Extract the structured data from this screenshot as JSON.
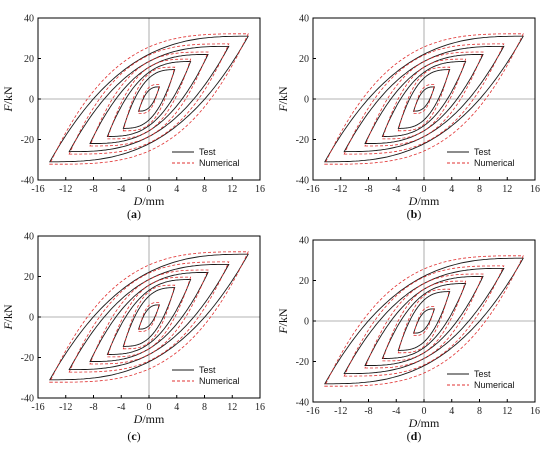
{
  "colors": {
    "test": "#1a1a1a",
    "numerical": "#e03030",
    "axis": "#000000",
    "zero_line": "#9a9a9a"
  },
  "chart_data": [
    {
      "type": "line",
      "panel_label": "(a)",
      "xlabel_parts": [
        "D",
        "/mm"
      ],
      "ylabel_parts": [
        "F",
        "/kN"
      ],
      "xlim": [
        -16,
        16
      ],
      "ylim": [
        -40,
        40
      ],
      "xticks": [
        -16,
        -12,
        -8,
        -4,
        0,
        4,
        8,
        12,
        16
      ],
      "yticks": [
        -40,
        -20,
        0,
        20,
        40
      ],
      "legend_position": "bottom-right",
      "legend": [
        "Test",
        "Numerical"
      ],
      "amplitudes_mm": [
        1.5,
        3.7,
        6,
        8.5,
        11.5,
        14.3
      ],
      "peak_forces_kN": [
        6,
        14.5,
        18.5,
        22,
        26,
        31
      ],
      "series": [
        {
          "name": "Test",
          "style": "solid",
          "color": "#1a1a1a"
        },
        {
          "name": "Numerical",
          "style": "dashed",
          "color": "#e03030"
        }
      ]
    },
    {
      "type": "line",
      "panel_label": "(b)",
      "xlabel_parts": [
        "D",
        "/mm"
      ],
      "ylabel_parts": [
        "F",
        "/kN"
      ],
      "xlim": [
        -16,
        16
      ],
      "ylim": [
        -40,
        40
      ],
      "xticks": [
        -16,
        -12,
        -8,
        -4,
        0,
        4,
        8,
        12,
        16
      ],
      "yticks": [
        -40,
        -20,
        0,
        20,
        40
      ],
      "legend_position": "bottom-right",
      "legend": [
        "Test",
        "Numerical"
      ],
      "amplitudes_mm": [
        1.5,
        3.7,
        6,
        8.5,
        11.5,
        14.3
      ],
      "peak_forces_kN": [
        6,
        14.5,
        18.5,
        22,
        26,
        31
      ],
      "series": [
        {
          "name": "Test",
          "style": "solid",
          "color": "#1a1a1a"
        },
        {
          "name": "Numerical",
          "style": "dashed",
          "color": "#e03030"
        }
      ]
    },
    {
      "type": "line",
      "panel_label": "(c)",
      "xlabel_parts": [
        "D",
        "/mm"
      ],
      "ylabel_parts": [
        "F",
        "/kN"
      ],
      "xlim": [
        -16,
        16
      ],
      "ylim": [
        -40,
        40
      ],
      "xticks": [
        -16,
        -12,
        -8,
        -4,
        0,
        4,
        8,
        12,
        16
      ],
      "yticks": [
        -40,
        -20,
        0,
        20,
        40
      ],
      "legend_position": "bottom-right",
      "legend": [
        "Test",
        "Numerical"
      ],
      "amplitudes_mm": [
        1.5,
        3.7,
        6,
        8.5,
        11.5,
        14.3
      ],
      "peak_forces_kN": [
        6,
        14.5,
        18.5,
        22,
        26,
        31
      ],
      "series": [
        {
          "name": "Test",
          "style": "solid",
          "color": "#1a1a1a"
        },
        {
          "name": "Numerical",
          "style": "dashed",
          "color": "#e03030"
        }
      ]
    },
    {
      "type": "line",
      "panel_label": "(d)",
      "xlabel_parts": [
        "D",
        "/mm"
      ],
      "ylabel_parts": [
        "F",
        "/kN"
      ],
      "xlim": [
        -16,
        16
      ],
      "ylim": [
        -40,
        40
      ],
      "xticks": [
        -16,
        -12,
        -8,
        -4,
        0,
        4,
        8,
        12,
        16
      ],
      "yticks": [
        -40,
        -20,
        0,
        20,
        40
      ],
      "legend_position": "bottom-right",
      "legend": [
        "Test",
        "Numerical"
      ],
      "amplitudes_mm": [
        1.5,
        3.7,
        6,
        8.5,
        11.5,
        14.3
      ],
      "peak_forces_kN": [
        6,
        14.5,
        18.5,
        22,
        26,
        31
      ],
      "series": [
        {
          "name": "Test",
          "style": "solid",
          "color": "#1a1a1a"
        },
        {
          "name": "Numerical",
          "style": "dashed",
          "color": "#e03030"
        }
      ]
    }
  ]
}
